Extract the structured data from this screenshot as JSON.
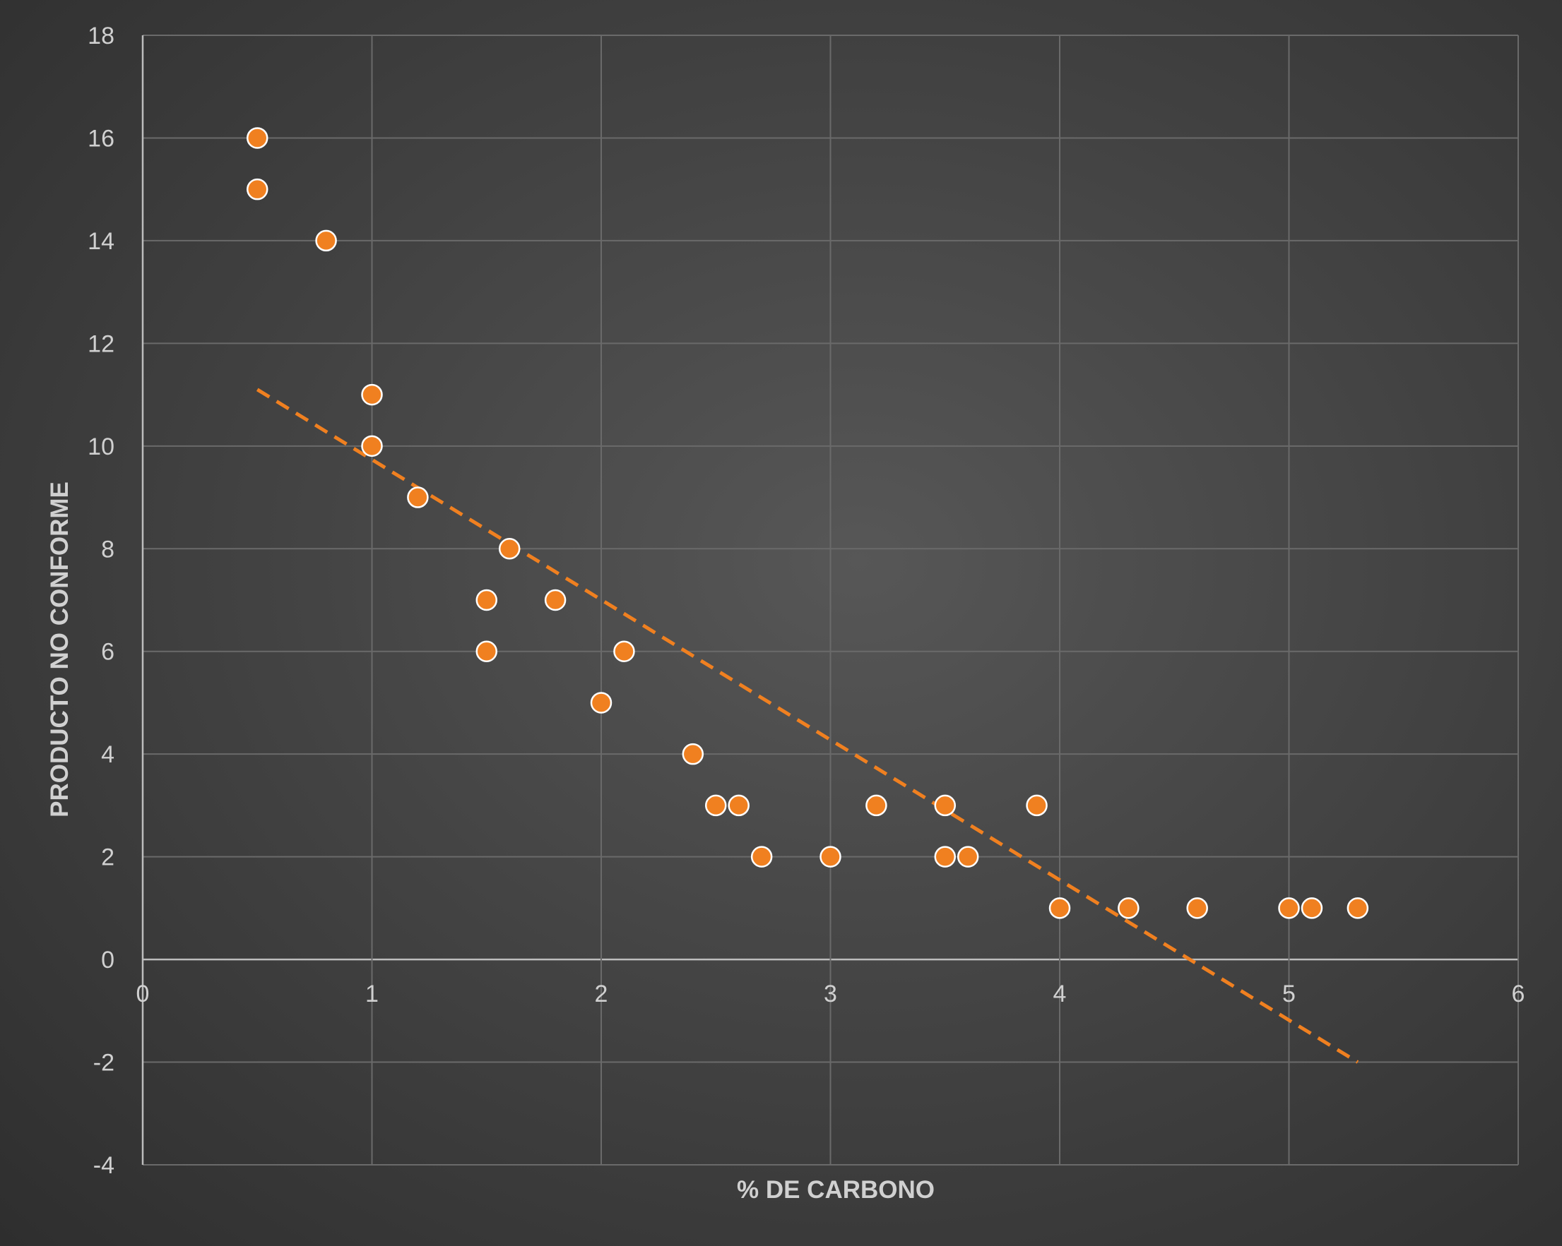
{
  "chart_data": {
    "type": "scatter",
    "title": "",
    "xlabel": "% DE CARBONO",
    "ylabel": "PRODUCTO NO CONFORME",
    "xlim": [
      0,
      6
    ],
    "ylim": [
      -4,
      18
    ],
    "xticks": [
      0,
      1,
      2,
      3,
      4,
      5,
      6
    ],
    "yticks": [
      -4,
      -2,
      0,
      2,
      4,
      6,
      8,
      10,
      12,
      14,
      16,
      18
    ],
    "grid": true,
    "legend": "none",
    "colors": {
      "points": "#F08020",
      "trendline": "#F08020"
    },
    "series": [
      {
        "points": [
          [
            0.5,
            16
          ],
          [
            0.5,
            15
          ],
          [
            0.8,
            14
          ],
          [
            1.0,
            11
          ],
          [
            1.0,
            10
          ],
          [
            1.2,
            9
          ],
          [
            1.6,
            8
          ],
          [
            1.5,
            7
          ],
          [
            1.8,
            7
          ],
          [
            1.5,
            6
          ],
          [
            2.1,
            6
          ],
          [
            2.0,
            5
          ],
          [
            2.4,
            4
          ],
          [
            2.5,
            3
          ],
          [
            2.6,
            3
          ],
          [
            2.7,
            2
          ],
          [
            3.0,
            2
          ],
          [
            3.2,
            3
          ],
          [
            3.5,
            3
          ],
          [
            3.5,
            2
          ],
          [
            3.6,
            2
          ],
          [
            3.9,
            3
          ],
          [
            4.0,
            1
          ],
          [
            4.3,
            1
          ],
          [
            4.6,
            1
          ],
          [
            5.0,
            1
          ],
          [
            5.1,
            1
          ],
          [
            5.3,
            1
          ]
        ]
      }
    ],
    "trendline": {
      "type": "linear",
      "x_range": [
        0.5,
        5.3
      ],
      "y_at_start": 11.1,
      "y_at_end": -2.0
    }
  }
}
